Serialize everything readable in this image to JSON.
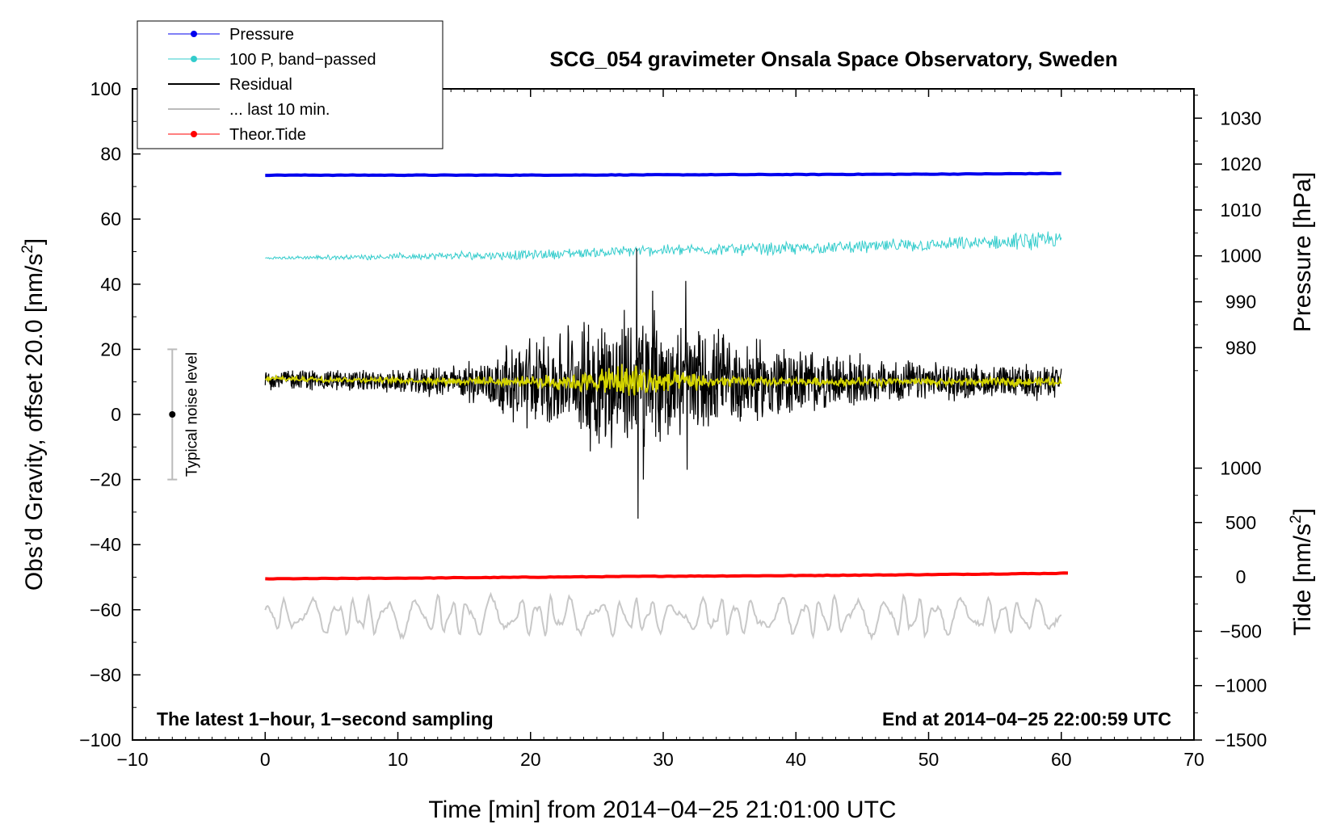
{
  "chart_data": {
    "type": "line",
    "title": "SCG_054 gravimeter Onsala Space Observatory, Sweden",
    "xlabel": "Time [min] from 2014−04−25 21:01:00 UTC",
    "ylabel": "Obs’d Gravity, offset 20.0 [nm/s",
    "ylabel_sup": "2",
    "ylabel_end": "]",
    "pressure_axis_label": "Pressure [hPa]",
    "tide_axis_label": "Tide [nm/s",
    "tide_axis_label_sup": "2",
    "tide_axis_label_end": "]",
    "xlim": [
      -10,
      70
    ],
    "ylim": [
      -100,
      100
    ],
    "x_ticks": [
      -10,
      0,
      10,
      20,
      30,
      40,
      50,
      60,
      70
    ],
    "x_tick_labels": [
      "−10",
      "0",
      "10",
      "20",
      "30",
      "40",
      "50",
      "60",
      "70"
    ],
    "y_ticks": [
      -100,
      -80,
      -60,
      -40,
      -20,
      0,
      20,
      40,
      60,
      80,
      100
    ],
    "y_tick_labels": [
      "−100",
      "−80",
      "−60",
      "−40",
      "−20",
      "0",
      "20",
      "40",
      "60",
      "80",
      "100"
    ],
    "pressure_ticks": [
      980,
      990,
      1000,
      1010,
      1020,
      1030
    ],
    "pressure_tick_labels": [
      "980",
      "990",
      "1000",
      "1010",
      "1020",
      "1030"
    ],
    "pressure_axis_map": {
      "p1": 980,
      "y1": 20.5,
      "p2": 1030,
      "y2": 91.0
    },
    "tide_ticks": [
      -1500,
      -1000,
      -500,
      0,
      500,
      1000
    ],
    "tide_tick_labels": [
      "−1500",
      "−1000",
      "−500",
      "0",
      "500",
      "1000"
    ],
    "tide_axis_map": {
      "t1": -1500,
      "y1": -100,
      "t2": 1000,
      "y2": -16.5
    },
    "grid": false,
    "legend_position": "top-left",
    "legend": [
      {
        "label": "Pressure",
        "color": "#0000ee",
        "marker": "dot"
      },
      {
        "label": "100 P, band−passed",
        "color": "#33cccc",
        "marker": "dot"
      },
      {
        "label": "Residual",
        "color": "#000000",
        "marker": "none"
      },
      {
        "label": "... last 10 min.",
        "color": "#bbbbbb",
        "marker": "none"
      },
      {
        "label": "Theor.Tide",
        "color": "#ff0000",
        "marker": "dot"
      }
    ],
    "series": [
      {
        "name": "Pressure",
        "color": "#0000ee",
        "style": "thick",
        "x": [
          0,
          10,
          20,
          30,
          40,
          50,
          60
        ],
        "values": [
          73.5,
          73.5,
          73.5,
          73.6,
          73.7,
          73.8,
          74.0
        ]
      },
      {
        "name": "100 P, band-passed",
        "color": "#33cccc",
        "style": "noisy",
        "x": [
          0,
          10,
          20,
          30,
          40,
          50,
          60
        ],
        "values": [
          48,
          48.5,
          49,
          50.5,
          51,
          52,
          53.5
        ],
        "noise": [
          0.5,
          1.2,
          2.0,
          2.0,
          2.5,
          2.5,
          3.5
        ]
      },
      {
        "name": "Residual",
        "color": "#000000",
        "style": "noisy",
        "x": [
          0,
          10,
          15,
          20,
          25,
          28,
          30,
          35,
          40,
          45,
          50,
          55,
          60
        ],
        "values": [
          11,
          10,
          10,
          10,
          10,
          10,
          10,
          10,
          10,
          10,
          10,
          10,
          10
        ],
        "noise": [
          4,
          4,
          7,
          16,
          24,
          28,
          24,
          18,
          12,
          9,
          7,
          6,
          6
        ],
        "spikes": [
          {
            "x": 28.0,
            "y": 51
          },
          {
            "x": 28.1,
            "y": -32
          },
          {
            "x": 29.2,
            "y": 38
          },
          {
            "x": 31.7,
            "y": 41
          },
          {
            "x": 31.8,
            "y": -17
          },
          {
            "x": 28.5,
            "y": -20
          }
        ]
      },
      {
        "name": "... last 10 min.",
        "color": "#c8c8c8",
        "style": "smooth-noisy",
        "x": [
          0,
          10,
          20,
          30,
          40,
          50,
          60
        ],
        "values": [
          -62,
          -62,
          -62,
          -62,
          -62,
          -62,
          -62
        ],
        "noise": [
          5,
          6,
          6,
          5,
          6,
          6,
          5
        ]
      },
      {
        "name": "Yellow smoothed residual",
        "color": "#d4d400",
        "style": "noisy",
        "x": [
          0,
          10,
          20,
          25,
          28,
          30,
          35,
          40,
          50,
          60
        ],
        "values": [
          11,
          10.5,
          10,
          10,
          10,
          10,
          10,
          10,
          10,
          10
        ],
        "noise": [
          1,
          1,
          2,
          4,
          9,
          4,
          2,
          1.5,
          1.5,
          1.5
        ]
      },
      {
        "name": "Theor.Tide",
        "color": "#ff0000",
        "style": "thick",
        "x": [
          0,
          10,
          20,
          30,
          40,
          50,
          60,
          60.5
        ],
        "values": [
          -50.5,
          -50.3,
          -50.0,
          -49.7,
          -49.5,
          -49.2,
          -48.8,
          -48.7
        ]
      }
    ],
    "noise_bar": {
      "label": "Typical noise level",
      "x": -7,
      "center": 0,
      "low": -20,
      "high": 20
    },
    "annotations": {
      "bottom_left": "The latest 1−hour, 1−second sampling",
      "bottom_right": "End at 2014−04−25 22:00:59 UTC"
    }
  }
}
